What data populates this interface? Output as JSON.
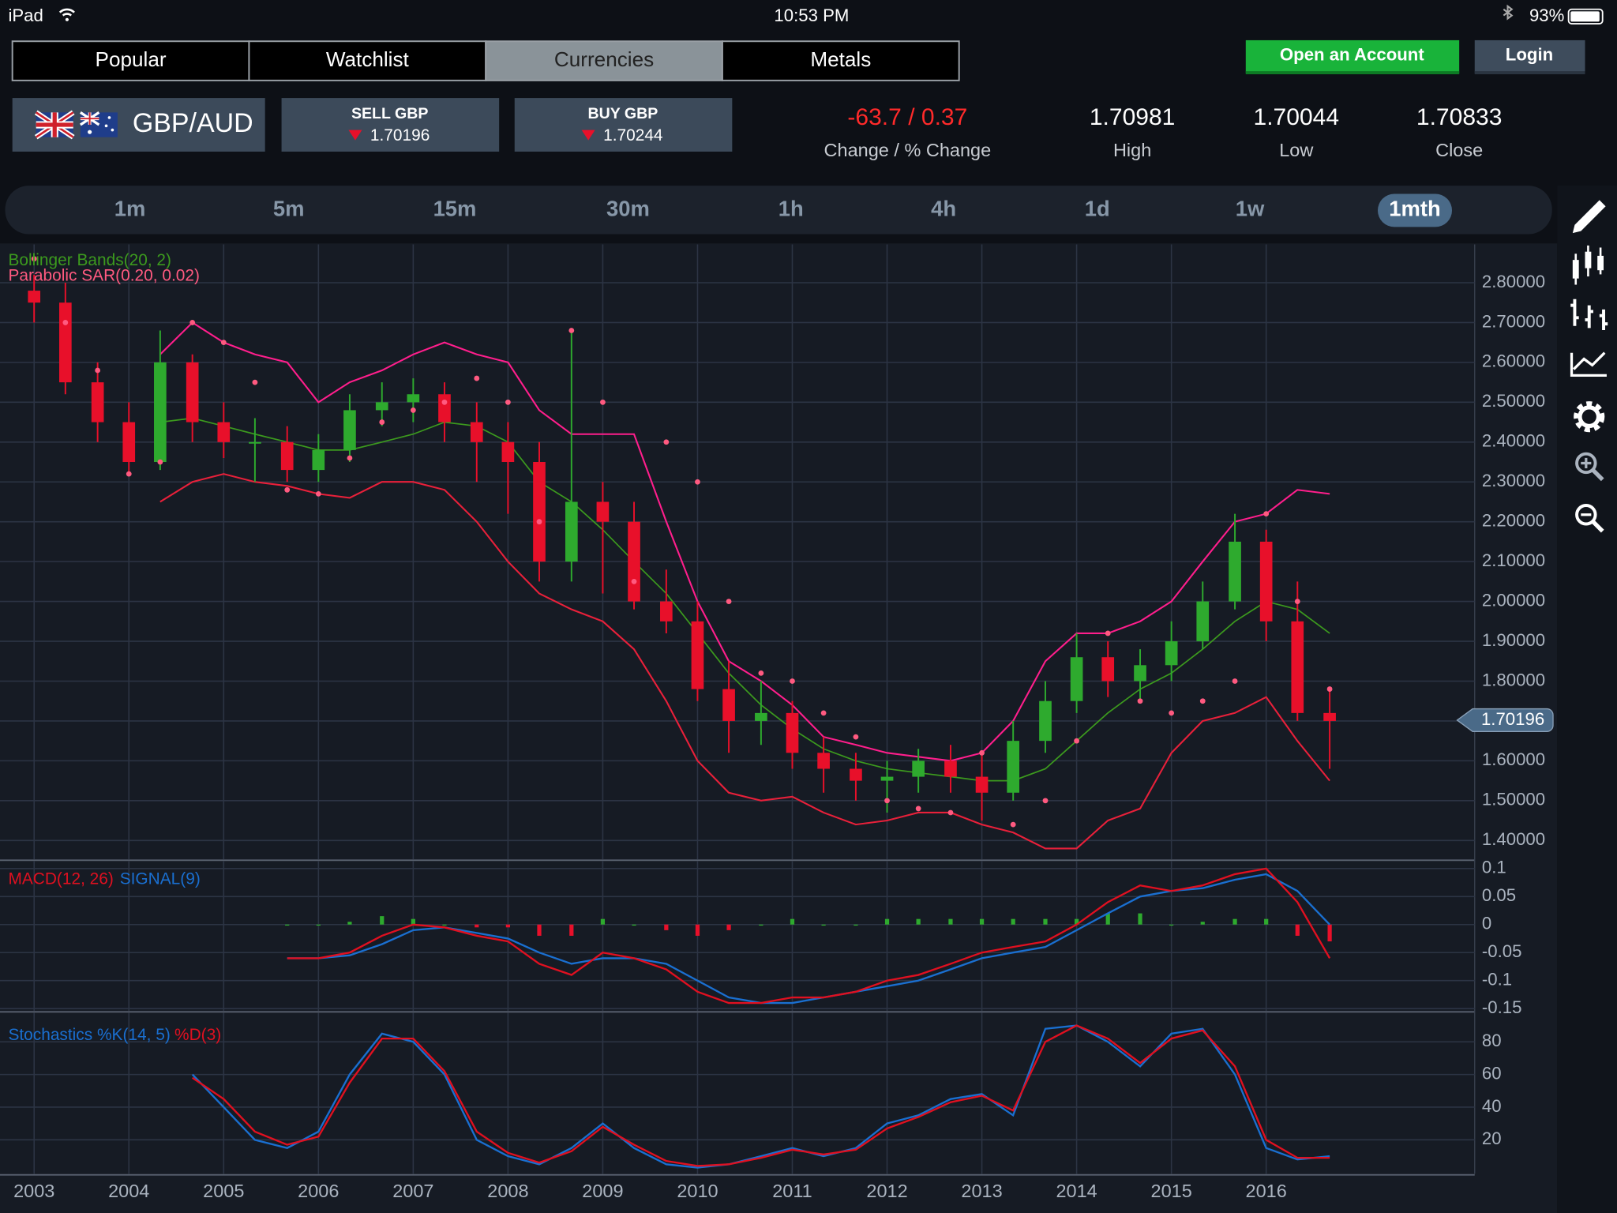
{
  "status_bar": {
    "device": "iPad",
    "time": "10:53 PM",
    "battery": "93%"
  },
  "tabs": [
    "Popular",
    "Watchlist",
    "Currencies",
    "Metals"
  ],
  "active_tab": 2,
  "buttons": {
    "open_account": "Open an Account",
    "login": "Login"
  },
  "instrument": {
    "pair": "GBP/AUD",
    "sell_label": "SELL GBP",
    "sell_price": "1.70196",
    "buy_label": "BUY GBP",
    "buy_price": "1.70244",
    "change": "-63.7 / 0.37",
    "change_label": "Change / % Change",
    "high": "1.70981",
    "high_label": "High",
    "low": "1.70044",
    "low_label": "Low",
    "close": "1.70833",
    "close_label": "Close"
  },
  "timeframes": [
    "1m",
    "5m",
    "15m",
    "30m",
    "1h",
    "4h",
    "1d",
    "1w",
    "1mth"
  ],
  "active_timeframe": 8,
  "chart_data": [
    {
      "type": "candlestick",
      "bands_label": "Bollinger Bands(20, 2)",
      "sar_label": "Parabolic SAR(0.20, 0.02)",
      "x": [
        2003,
        2003.33,
        2003.67,
        2004,
        2004.33,
        2004.67,
        2005,
        2005.33,
        2005.67,
        2006,
        2006.33,
        2006.67,
        2007,
        2007.33,
        2007.67,
        2008,
        2008.33,
        2008.67,
        2009,
        2009.33,
        2009.67,
        2010,
        2010.33,
        2010.67,
        2011,
        2011.33,
        2011.67,
        2012,
        2012.33,
        2012.67,
        2013,
        2013.33,
        2013.67,
        2014,
        2014.33,
        2014.67,
        2015,
        2015.33,
        2015.67,
        2016,
        2016.33,
        2016.67
      ],
      "open": [
        2.78,
        2.75,
        2.55,
        2.45,
        2.35,
        2.6,
        2.45,
        2.4,
        2.4,
        2.33,
        2.38,
        2.48,
        2.5,
        2.52,
        2.45,
        2.4,
        2.35,
        2.1,
        2.25,
        2.2,
        2.0,
        1.95,
        1.78,
        1.7,
        1.72,
        1.62,
        1.58,
        1.55,
        1.56,
        1.6,
        1.56,
        1.52,
        1.65,
        1.75,
        1.86,
        1.8,
        1.84,
        1.9,
        2.0,
        2.15,
        1.95,
        1.72
      ],
      "high": [
        2.82,
        2.8,
        2.6,
        2.5,
        2.68,
        2.62,
        2.5,
        2.46,
        2.44,
        2.42,
        2.52,
        2.55,
        2.56,
        2.55,
        2.5,
        2.45,
        2.4,
        2.68,
        2.3,
        2.25,
        2.08,
        2.0,
        1.85,
        1.8,
        1.75,
        1.66,
        1.62,
        1.6,
        1.63,
        1.64,
        1.62,
        1.7,
        1.8,
        1.92,
        1.9,
        1.88,
        1.95,
        2.05,
        2.22,
        2.18,
        2.05,
        1.78
      ],
      "low": [
        2.7,
        2.52,
        2.4,
        2.32,
        2.33,
        2.4,
        2.36,
        2.3,
        2.3,
        2.3,
        2.35,
        2.44,
        2.45,
        2.4,
        2.3,
        2.22,
        2.05,
        2.05,
        2.02,
        1.98,
        1.92,
        1.75,
        1.62,
        1.64,
        1.58,
        1.52,
        1.5,
        1.47,
        1.52,
        1.52,
        1.45,
        1.5,
        1.62,
        1.72,
        1.76,
        1.75,
        1.8,
        1.88,
        1.98,
        1.9,
        1.7,
        1.58
      ],
      "close": [
        2.75,
        2.55,
        2.45,
        2.35,
        2.6,
        2.45,
        2.4,
        2.4,
        2.33,
        2.38,
        2.48,
        2.5,
        2.52,
        2.45,
        2.4,
        2.35,
        2.1,
        2.25,
        2.2,
        2.0,
        1.95,
        1.78,
        1.7,
        1.72,
        1.62,
        1.58,
        1.55,
        1.56,
        1.6,
        1.56,
        1.52,
        1.65,
        1.75,
        1.86,
        1.8,
        1.84,
        1.9,
        2.0,
        2.15,
        1.95,
        1.72,
        1.7
      ],
      "bb_upper": [
        null,
        null,
        null,
        null,
        2.62,
        2.7,
        2.65,
        2.62,
        2.6,
        2.5,
        2.55,
        2.58,
        2.62,
        2.65,
        2.62,
        2.6,
        2.48,
        2.42,
        2.42,
        2.42,
        2.2,
        2.0,
        1.85,
        1.8,
        1.74,
        1.66,
        1.64,
        1.62,
        1.61,
        1.6,
        1.62,
        1.7,
        1.85,
        1.92,
        1.92,
        1.95,
        2.0,
        2.1,
        2.2,
        2.22,
        2.28,
        2.27
      ],
      "bb_middle": [
        null,
        null,
        null,
        null,
        2.45,
        2.46,
        2.44,
        2.42,
        2.4,
        2.38,
        2.38,
        2.4,
        2.42,
        2.45,
        2.44,
        2.4,
        2.3,
        2.25,
        2.18,
        2.1,
        2.02,
        1.92,
        1.82,
        1.74,
        1.68,
        1.63,
        1.6,
        1.58,
        1.57,
        1.56,
        1.55,
        1.55,
        1.58,
        1.65,
        1.72,
        1.78,
        1.82,
        1.88,
        1.95,
        2.0,
        1.98,
        1.92
      ],
      "bb_lower": [
        null,
        null,
        null,
        null,
        2.25,
        2.3,
        2.32,
        2.3,
        2.29,
        2.27,
        2.26,
        2.3,
        2.3,
        2.28,
        2.2,
        2.1,
        2.02,
        1.98,
        1.95,
        1.88,
        1.75,
        1.6,
        1.52,
        1.5,
        1.51,
        1.47,
        1.44,
        1.45,
        1.47,
        1.47,
        1.44,
        1.42,
        1.38,
        1.38,
        1.45,
        1.48,
        1.62,
        1.7,
        1.72,
        1.76,
        1.65,
        1.55
      ],
      "sar": [
        2.86,
        2.7,
        2.58,
        2.32,
        2.35,
        2.7,
        2.65,
        2.55,
        2.28,
        2.27,
        2.36,
        2.45,
        2.48,
        2.5,
        2.56,
        2.5,
        2.2,
        2.68,
        2.5,
        2.05,
        2.4,
        2.3,
        2.0,
        1.82,
        1.8,
        1.72,
        1.66,
        1.5,
        1.48,
        1.47,
        1.62,
        1.44,
        1.5,
        1.65,
        1.92,
        1.75,
        1.72,
        1.75,
        1.8,
        2.22,
        2.0,
        1.78
      ],
      "colors": {
        "up": "#2eaa2e",
        "down": "#e8102a",
        "bb_upper": "#ff1e8c",
        "bb_middle": "#3c9a1e",
        "bb_lower": "#e8203a",
        "sar": "#ff5a80"
      },
      "xlim": [
        2002.64,
        2018.2
      ],
      "xticks": [
        2003,
        2004,
        2005,
        2006,
        2007,
        2008,
        2009,
        2010,
        2011,
        2012,
        2013,
        2014,
        2015,
        2016
      ],
      "ylim": [
        1.353,
        2.896
      ],
      "yticks": [
        {
          "value": 1.4,
          "label": "1.40000"
        },
        {
          "value": 1.5,
          "label": "1.50000"
        },
        {
          "value": 1.6,
          "label": "1.60000"
        },
        {
          "value": 1.7,
          "label": "1.70000"
        },
        {
          "value": 1.8,
          "label": "1.80000"
        },
        {
          "value": 1.9,
          "label": "1.90000"
        },
        {
          "value": 2.0,
          "label": "2.00000"
        },
        {
          "value": 2.1,
          "label": "2.10000"
        },
        {
          "value": 2.2,
          "label": "2.20000"
        },
        {
          "value": 2.3,
          "label": "2.30000"
        },
        {
          "value": 2.4,
          "label": "2.40000"
        },
        {
          "value": 2.5,
          "label": "2.50000"
        },
        {
          "value": 2.6,
          "label": "2.60000"
        },
        {
          "value": 2.7,
          "label": "2.70000"
        },
        {
          "value": 2.8,
          "label": "2.80000"
        }
      ],
      "last_price": {
        "value": 1.70196,
        "label": "1.70196"
      },
      "grid": true
    },
    {
      "type": "macd",
      "title": "MACD(12, 26)",
      "signal_label": "SIGNAL(9)",
      "macd": [
        null,
        null,
        null,
        null,
        null,
        null,
        null,
        null,
        -0.06,
        -0.06,
        -0.05,
        -0.02,
        0.0,
        -0.005,
        -0.02,
        -0.03,
        -0.07,
        -0.09,
        -0.05,
        -0.06,
        -0.08,
        -0.12,
        -0.14,
        -0.14,
        -0.13,
        -0.13,
        -0.12,
        -0.1,
        -0.09,
        -0.07,
        -0.05,
        -0.04,
        -0.03,
        0.0,
        0.04,
        0.07,
        0.06,
        0.07,
        0.09,
        0.1,
        0.04,
        -0.06
      ],
      "signal": [
        null,
        null,
        null,
        null,
        null,
        null,
        null,
        null,
        -0.06,
        -0.06,
        -0.055,
        -0.035,
        -0.01,
        -0.005,
        -0.015,
        -0.025,
        -0.05,
        -0.07,
        -0.06,
        -0.06,
        -0.07,
        -0.1,
        -0.13,
        -0.14,
        -0.14,
        -0.13,
        -0.12,
        -0.11,
        -0.1,
        -0.08,
        -0.06,
        -0.05,
        -0.04,
        -0.01,
        0.02,
        0.05,
        0.06,
        0.065,
        0.08,
        0.09,
        0.06,
        0.0
      ],
      "histogram": [
        null,
        null,
        null,
        null,
        null,
        null,
        null,
        null,
        0,
        0,
        0.005,
        0.015,
        0.01,
        0,
        -0.005,
        -0.005,
        -0.02,
        -0.02,
        0.01,
        0,
        -0.01,
        -0.02,
        -0.01,
        0,
        0.01,
        0,
        0,
        0.01,
        0.01,
        0.01,
        0.01,
        0.01,
        0.01,
        0.01,
        0.02,
        0.02,
        0,
        0.005,
        0.01,
        0.01,
        -0.02,
        -0.03
      ],
      "colors": {
        "macd": "#e01020",
        "signal": "#1a6fd0",
        "up": "#2eaa2e",
        "down": "#e8102a"
      },
      "ylim": [
        -0.154,
        0.113
      ],
      "yticks": [
        0.1,
        0.05,
        0,
        -0.05,
        -0.1,
        -0.15
      ],
      "grid": true
    },
    {
      "type": "stochastic",
      "title": "Stochastics %K(14, 5)",
      "d_label": "%D(3)",
      "k": [
        null,
        null,
        null,
        null,
        null,
        60,
        40,
        20,
        15,
        25,
        60,
        85,
        80,
        60,
        20,
        10,
        5,
        15,
        30,
        15,
        5,
        3,
        5,
        10,
        15,
        10,
        15,
        30,
        35,
        45,
        48,
        35,
        88,
        90,
        80,
        65,
        85,
        88,
        60,
        15,
        8,
        10
      ],
      "d": [
        null,
        null,
        null,
        null,
        null,
        58,
        45,
        25,
        17,
        22,
        55,
        82,
        82,
        62,
        25,
        12,
        6,
        13,
        28,
        17,
        7,
        4,
        5,
        9,
        14,
        11,
        14,
        27,
        34,
        43,
        47,
        38,
        80,
        90,
        82,
        67,
        82,
        87,
        65,
        20,
        9,
        9
      ],
      "colors": {
        "k": "#1a6fd0",
        "d": "#e01020"
      },
      "ylim": [
        -0.8,
        97.7
      ],
      "yticks": [
        20,
        40,
        60,
        80
      ],
      "grid": true
    }
  ]
}
